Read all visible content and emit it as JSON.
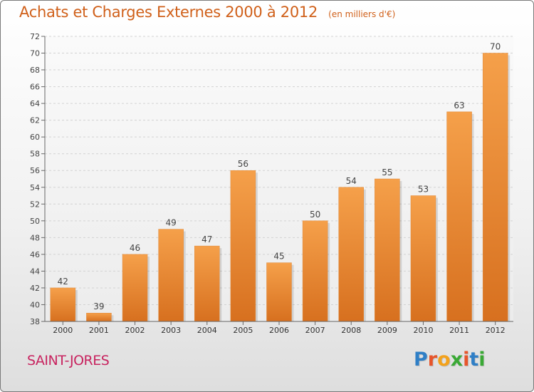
{
  "chart_data": {
    "type": "bar",
    "title": "Achats et Charges Externes 2000 à 2012",
    "subtitle": "(en milliers d'€)",
    "categories": [
      "2000",
      "2001",
      "2002",
      "2003",
      "2004",
      "2005",
      "2006",
      "2007",
      "2008",
      "2009",
      "2010",
      "2011",
      "2012"
    ],
    "values": [
      42,
      39,
      46,
      49,
      47,
      56,
      45,
      50,
      54,
      55,
      53,
      63,
      70
    ],
    "ylim": [
      38,
      72
    ],
    "yticks": [
      38,
      40,
      42,
      44,
      46,
      48,
      50,
      52,
      54,
      56,
      58,
      60,
      62,
      64,
      66,
      68,
      70,
      72
    ],
    "xlabel": "",
    "ylabel": "",
    "grid": true,
    "bar_color": "#f5a04a",
    "bar_color_dark": "#d7701f"
  },
  "location": {
    "name": "SAINT-JORES"
  },
  "brand": {
    "letters": [
      "P",
      "r",
      "o",
      "x",
      "i",
      "t",
      "i"
    ],
    "colors": [
      "#2f7fc6",
      "#e7552b",
      "#f3a21c",
      "#3aa935",
      "#e7552b",
      "#2f7fc6",
      "#3aa935"
    ]
  },
  "colors": {
    "title": "#d0601a",
    "location": "#c8235f"
  }
}
